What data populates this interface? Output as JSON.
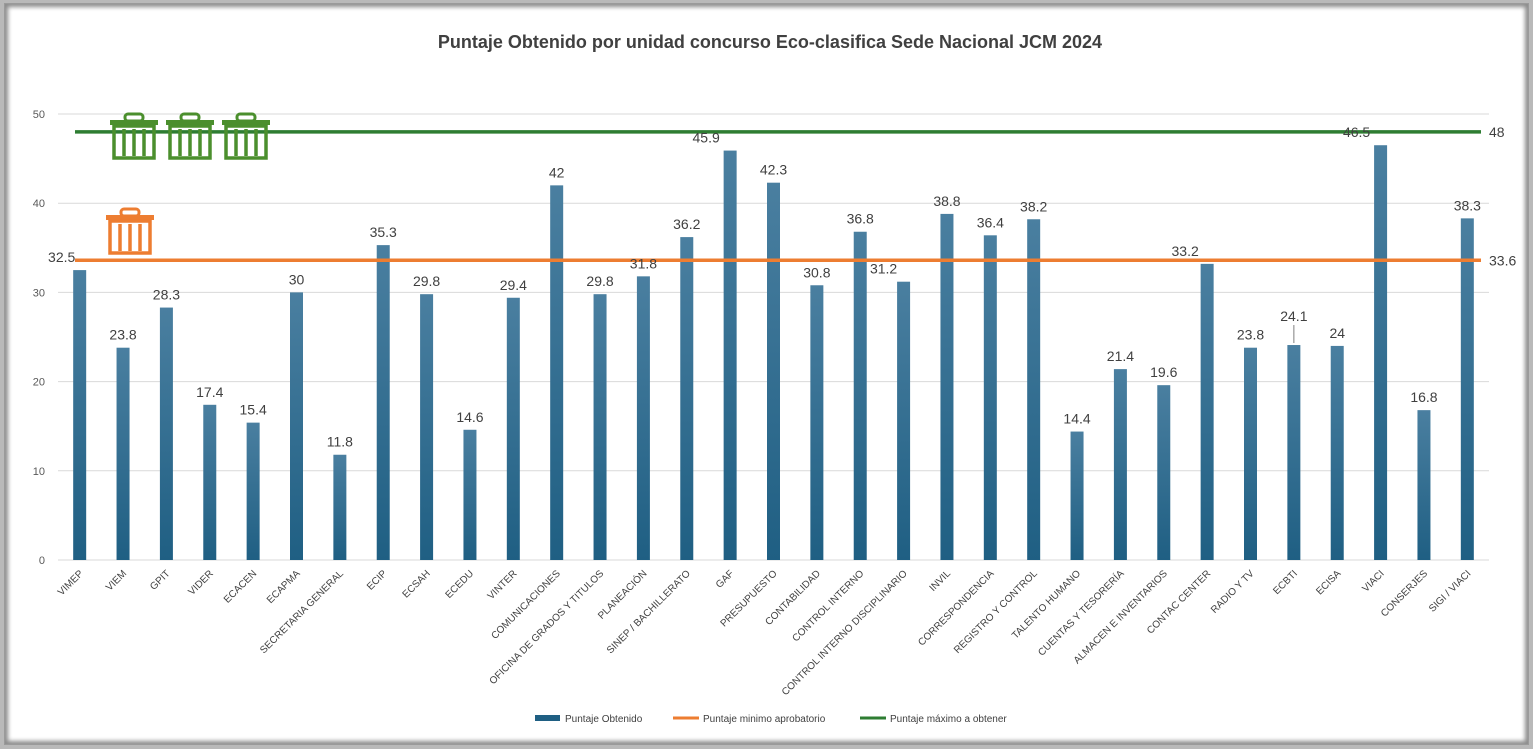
{
  "chart_data": {
    "type": "bar",
    "title": "Puntaje Obtenido por unidad concurso Eco-clasifica Sede Nacional JCM 2024",
    "categories": [
      "VIMEP",
      "VIEM",
      "GPIT",
      "VIDER",
      "ECACEN",
      "ECAPMA",
      "SECRETARIA GENERAL",
      "ECIP",
      "ECSAH",
      "ECEDU",
      "VINTER",
      "COMUNICACIONES",
      "OFICINA DE GRADOS Y TITULOS",
      "PLANEACIÓN",
      "SINEP / BACHILLERATO",
      "GAF",
      "PRESUPUESTO",
      "CONTABILIDAD",
      "CONTROL INTERNO",
      "CONTROL INTERNO DISCIPLINARIO",
      "INVIL",
      "CORRESPONDENCIA",
      "REGISTRO Y CONTROL",
      "TALENTO HUMANO",
      "CUENTAS Y TESORERÍA",
      "ALMACEN E INVENTARIOS",
      "CONTAC CENTER",
      "RADIO Y TV",
      "ECBTI",
      "ECISA",
      "VIACI",
      "CONSERJES",
      "SIGI / VIACI"
    ],
    "series": [
      {
        "name": "Puntaje Obtenido",
        "type": "bar",
        "color": "#1f5f83",
        "values": [
          32.5,
          23.8,
          28.3,
          17.4,
          15.4,
          30,
          11.8,
          35.3,
          29.8,
          14.6,
          29.4,
          42,
          29.8,
          31.8,
          36.2,
          45.9,
          42.3,
          30.8,
          36.8,
          31.2,
          38.8,
          36.4,
          38.2,
          14.4,
          21.4,
          19.6,
          33.2,
          23.8,
          24.1,
          24,
          46.5,
          16.8,
          38.3
        ]
      },
      {
        "name": "Puntaje minimo aprobatorio",
        "type": "line",
        "color": "#ed7d31",
        "value": 33.6,
        "label": "33.6"
      },
      {
        "name": "Puntaje máximo a obtener",
        "type": "line",
        "color": "#2e7d32",
        "value": 48,
        "label": "48"
      }
    ],
    "yticks": [
      "0",
      "10",
      "20",
      "30",
      "40",
      "50"
    ],
    "ylim": [
      0,
      50
    ],
    "grid": true,
    "legend_position": "bottom",
    "icons": [
      {
        "name": "green-trash-bin-icon",
        "color": "#4b8f2d",
        "count": 3
      },
      {
        "name": "orange-trash-bin-icon",
        "color": "#ed7d31",
        "count": 1
      }
    ]
  }
}
